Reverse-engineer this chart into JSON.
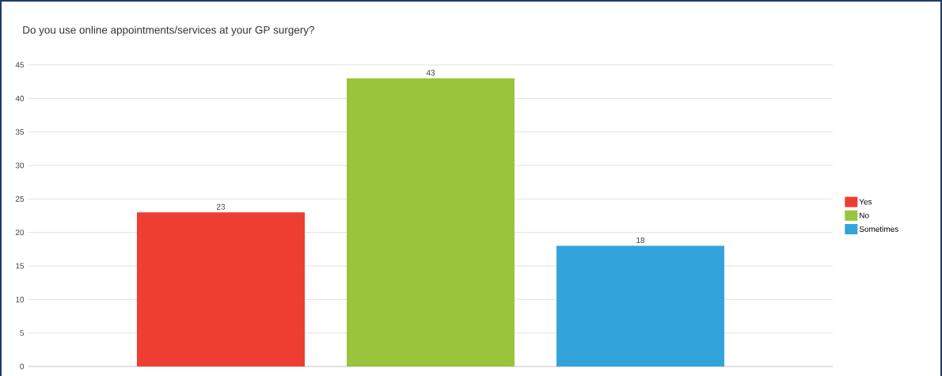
{
  "chart_data": {
    "type": "bar",
    "title": "Do you use online appointments/services at your GP surgery?",
    "categories": [
      null
    ],
    "series": [
      {
        "name": "Yes",
        "color": "#ee3e32",
        "values": [
          23
        ]
      },
      {
        "name": "No",
        "color": "#99c43c",
        "values": [
          43
        ]
      },
      {
        "name": "Sometimes",
        "color": "#33a3dc",
        "values": [
          18
        ]
      }
    ],
    "ylim": [
      0,
      45
    ],
    "yticks": [
      0,
      5,
      10,
      15,
      20,
      25,
      30,
      35,
      40,
      45
    ],
    "grid": "y",
    "legend": "right",
    "data_labels": true
  }
}
